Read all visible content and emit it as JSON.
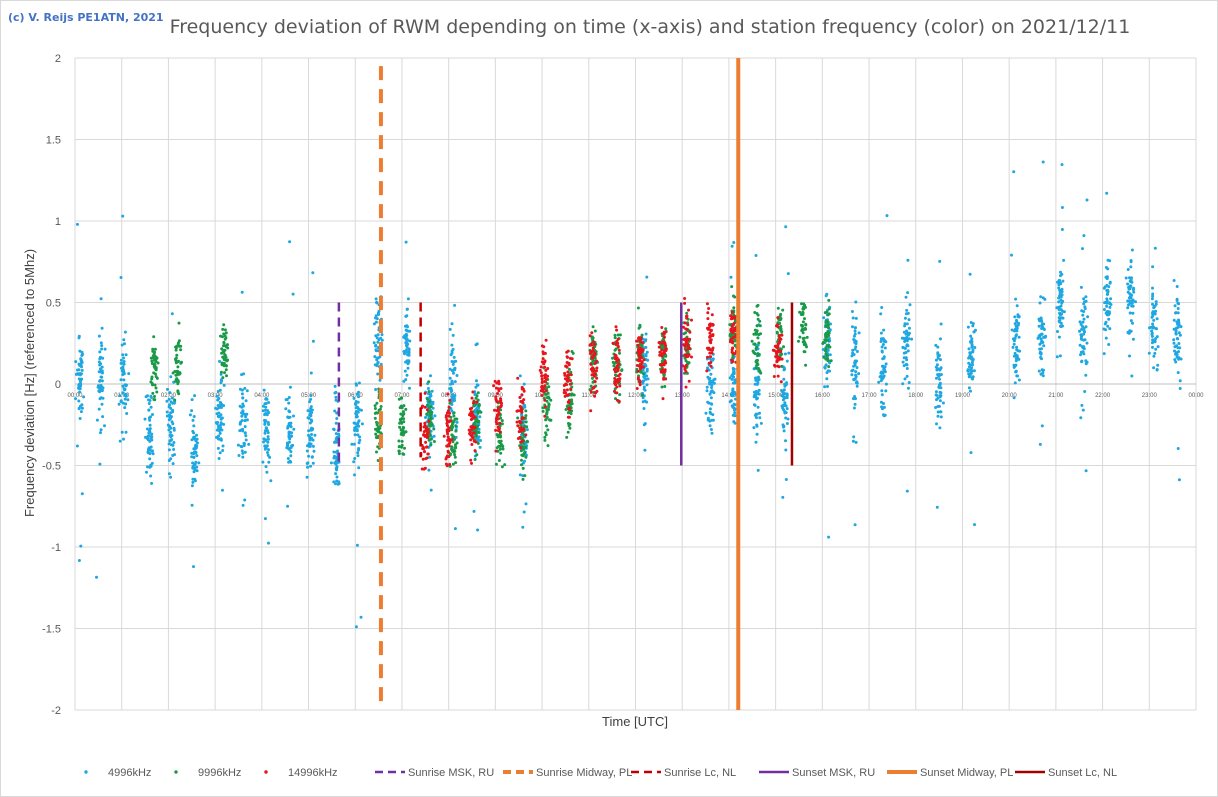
{
  "copyright": "(c) V. Reijs  PE1ATN, 2021",
  "chart_data": {
    "type": "scatter",
    "title": "Frequency deviation of RWM depending on time (x-axis) and station frequency (color) on 2021/12/11",
    "xlabel": "Time [UTC]",
    "ylabel": "Frequency deviation [Hz] (referenced to 5Mhz)",
    "ylim": [
      -2,
      2
    ],
    "xlim": [
      0,
      24
    ],
    "yticks": [
      "2",
      "1.5",
      "1",
      "0.5",
      "0",
      "-0.5",
      "-1",
      "-1.5",
      "-2"
    ],
    "xticks": [
      "00:00",
      "01:00",
      "02:00",
      "03:00",
      "04:00",
      "05:00",
      "06:00",
      "07:00",
      "08:00",
      "09:00",
      "10:00",
      "11:00",
      "12:00",
      "13:00",
      "14:00",
      "15:00",
      "16:00",
      "17:00",
      "18:00",
      "19:00",
      "20:00",
      "21:00",
      "22:00",
      "23:00",
      "00:00"
    ],
    "series": [
      {
        "name": "4996kHz",
        "color": "#1ea7e1",
        "clusters": [
          [
            0.1,
            0.05
          ],
          [
            0.55,
            0.02
          ],
          [
            1.05,
            0.0
          ],
          [
            1.6,
            -0.3
          ],
          [
            2.05,
            -0.27
          ],
          [
            2.55,
            -0.42
          ],
          [
            3.1,
            -0.22
          ],
          [
            3.6,
            -0.2
          ],
          [
            4.1,
            -0.27
          ],
          [
            4.6,
            -0.3
          ],
          [
            5.05,
            -0.3
          ],
          [
            5.6,
            -0.37
          ],
          [
            6.05,
            -0.27
          ],
          [
            6.5,
            0.28
          ],
          [
            7.1,
            0.2
          ],
          [
            7.6,
            -0.2
          ],
          [
            8.1,
            0.0
          ],
          [
            8.6,
            -0.2
          ],
          [
            9.6,
            -0.3
          ],
          [
            12.2,
            0.1
          ],
          [
            13.6,
            0.0
          ],
          [
            14.1,
            0.0
          ],
          [
            14.6,
            0.0
          ],
          [
            15.2,
            -0.1
          ],
          [
            16.1,
            0.25
          ],
          [
            16.7,
            0.15
          ],
          [
            17.3,
            0.1
          ],
          [
            17.8,
            0.25
          ],
          [
            18.5,
            0.02
          ],
          [
            19.2,
            0.15
          ],
          [
            20.15,
            0.25
          ],
          [
            20.7,
            0.3
          ],
          [
            21.1,
            0.5
          ],
          [
            21.6,
            0.35
          ],
          [
            22.1,
            0.5
          ],
          [
            22.6,
            0.5
          ],
          [
            23.1,
            0.35
          ],
          [
            23.6,
            0.3
          ]
        ]
      },
      {
        "name": "9996kHz",
        "color": "#1a9a48",
        "clusters": [
          [
            1.7,
            0.1
          ],
          [
            2.2,
            0.1
          ],
          [
            3.2,
            0.2
          ],
          [
            6.5,
            -0.25
          ],
          [
            7.0,
            -0.25
          ],
          [
            7.6,
            -0.25
          ],
          [
            8.1,
            -0.3
          ],
          [
            8.6,
            -0.25
          ],
          [
            9.1,
            -0.3
          ],
          [
            9.6,
            -0.35
          ],
          [
            10.1,
            -0.15
          ],
          [
            10.6,
            -0.1
          ],
          [
            11.1,
            0.15
          ],
          [
            11.6,
            0.12
          ],
          [
            12.1,
            0.2
          ],
          [
            12.6,
            0.18
          ],
          [
            13.1,
            0.2
          ],
          [
            14.1,
            0.35
          ],
          [
            14.6,
            0.25
          ],
          [
            15.1,
            0.3
          ],
          [
            15.6,
            0.35
          ],
          [
            16.1,
            0.3
          ]
        ]
      },
      {
        "name": "14996kHz",
        "color": "#e8141c",
        "clusters": [
          [
            7.5,
            -0.3
          ],
          [
            8.0,
            -0.3
          ],
          [
            8.5,
            -0.25
          ],
          [
            9.05,
            -0.15
          ],
          [
            9.55,
            -0.2
          ],
          [
            10.05,
            0.05
          ],
          [
            10.55,
            0.0
          ],
          [
            11.1,
            0.1
          ],
          [
            11.6,
            0.12
          ],
          [
            12.1,
            0.15
          ],
          [
            12.6,
            0.18
          ],
          [
            13.1,
            0.25
          ],
          [
            13.6,
            0.28
          ],
          [
            14.1,
            0.3
          ],
          [
            15.05,
            0.2
          ]
        ]
      }
    ],
    "events": [
      {
        "name": "Sunrise MSK, RU",
        "time": 5.65,
        "ymin": -0.5,
        "ymax": 0.5,
        "color": "#7030a0",
        "style": "dashed"
      },
      {
        "name": "Sunrise Midway, PL",
        "time": 6.55,
        "ymin": -1.95,
        "ymax": 1.95,
        "color": "#ed7d31",
        "style": "dashed"
      },
      {
        "name": "Sunrise Lc, NL",
        "time": 7.4,
        "ymin": -0.45,
        "ymax": 0.5,
        "color": "#c00000",
        "style": "dashed"
      },
      {
        "name": "Sunset MSK, RU",
        "time": 12.98,
        "ymin": -0.5,
        "ymax": 0.5,
        "color": "#7030a0",
        "style": "solid"
      },
      {
        "name": "Sunset Midway, PL",
        "time": 14.2,
        "ymin": -2.0,
        "ymax": 2.0,
        "color": "#ed7d31",
        "style": "solid"
      },
      {
        "name": "Sunset Lc, NL",
        "time": 15.35,
        "ymin": -0.5,
        "ymax": 0.5,
        "color": "#a00000",
        "style": "solid"
      }
    ],
    "legend_position": "bottom"
  }
}
